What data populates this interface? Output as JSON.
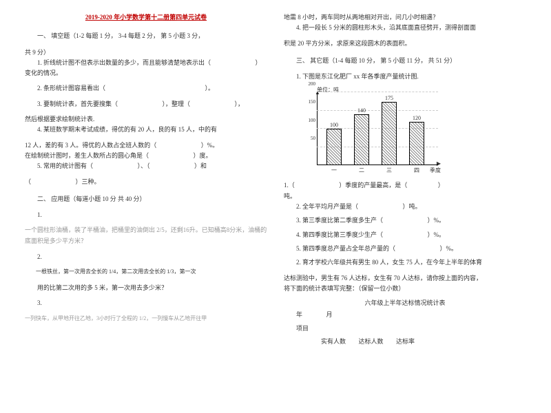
{
  "title": "2019-2020 年小学数学第十二册第四单元试卷",
  "left": {
    "section1_head": "一、 填空题（1-2 每题 1 分， 3-4 每题 2 分， 第 5 小题 3 分，",
    "section1_head2": "共 9 分）",
    "q1a": "1. 折线统计图不但表示出数量的多少，而且能够清楚地表示出（",
    "q1b": "）变化的情况。",
    "q2": "2. 条形统计图容易看出（",
    "q2b": "）。",
    "q3a": "3. 要制统计表，首先要搜集（",
    "q3m": "），整理（",
    "q3b": "），",
    "q3c": "然后根据要求绘制统计表.",
    "q4a": "4. 某班数学期末考试成绩，得优的有 20 人，良的有 15 人，中的有",
    "q4b": "12 人，差的有 3 人。得优的人数占全班人数的（",
    "q4c": "）%。",
    "q4d": "在绘制统计图时，差生人数所占的圆心角是（",
    "q4e": "）度。",
    "q5a": "5. 常用的统计图有（",
    "q5b": "）、（",
    "q5c": "）和",
    "q5d": "（",
    "q5e": "）三种。",
    "section2_head": "二、 应用题（每道小题 10 分 共 40 分）",
    "a1": "1.",
    "a1_body": "一个圆柱形油桶，装了半桶油，把桶里的油倒出 2/5，还剩16升。已知桶高8分米，油桶的底面积是多少平方米？",
    "a2": "2.",
    "a2_body": "一根铁丝，第一次用去全长的 1/4，第二次用去全长的 1/3，第一次",
    "a2_body2": "用的比第二次用的多 5 米，第一次用去多少米？",
    "a3": "3.",
    "a3_body": "一列快车，从甲地开往乙地，3小时行了全程的 1/2，一列慢车从乙地开往甲"
  },
  "right": {
    "cont1": "地需 8 小时，两车同时从两地相对开出，问几小时相遇？",
    "a4a": "4. 把一段长 5 分米的圆柱形木头，沿其底面直径劈开，测得剖面面",
    "a4b": "积是 20 平方分米，求原来这段圆木的表面积。",
    "section3_head": "三、 其它题（1-4 每题 10 分， 第 5 小题 11 分， 共 51 分）",
    "b1": "1. 下图是东江化肥厂 xx 年各季度产量统计图.",
    "chart": {
      "type": "bar",
      "y_unit_label": "单位：吨",
      "x_label": "季度",
      "ylim_max": 200,
      "ticks": [
        50,
        100,
        150,
        200
      ],
      "categories": [
        "一",
        "二",
        "三",
        "四"
      ],
      "values": [
        100,
        140,
        175,
        120
      ],
      "bar_fill": "repeating-linear-gradient(45deg,#888 0,#888 1px,transparent 1px,transparent 3px)",
      "bar_border": "#000000",
      "axis_color": "#000000",
      "grid_color": "#cccccc"
    },
    "c1a": "1.（",
    "c1b": "）季度的产量最高，是（",
    "c1c": "）",
    "c1d": "吨。",
    "c2a": "2. 全年平均月产量是（",
    "c2b": "）吨。",
    "c3a": "3. 第三季度比第二季度多生产（",
    "c3b": "）%。",
    "c4a": "4. 第四季度比第三季度少生产（",
    "c4b": "）%。",
    "c5a": "5. 第四季度总产量占全年总产量的（",
    "c5b": "）%。",
    "d1a": "2. 育才学校六年级共有男生 80 人，女生 75 人，在今年上半年的体育",
    "d1b": "达标测验中，男生有 76 人达标，女生有 70 人达标，请你按上面的内容，",
    "d1c": "将下面的统计表填写完整：（保留一位小数）",
    "table_title": "六年级上半年达标情况统计表",
    "table_date_l": "年",
    "table_date_r": "月",
    "table_h_item": "项目",
    "table_col1": "实有人数",
    "table_col2": "达标人数",
    "table_col3": "达标率"
  }
}
